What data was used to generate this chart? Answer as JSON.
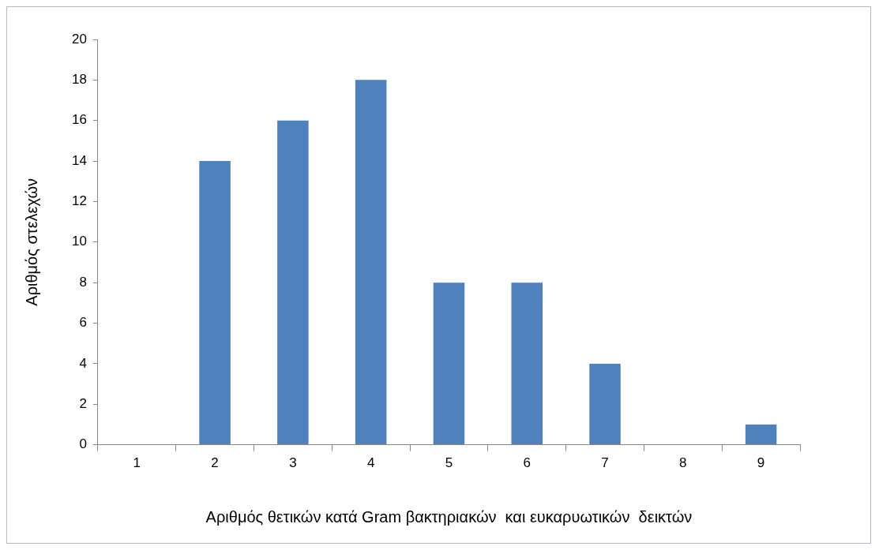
{
  "chart_data": {
    "type": "bar",
    "xlabel": "Αριθμός θετικών κατά Gram βακτηριακών  και ευκαρυωτικών  δεικτών",
    "ylabel": "Αριθμός στελεχών",
    "categories": [
      "1",
      "2",
      "3",
      "4",
      "5",
      "6",
      "7",
      "8",
      "9"
    ],
    "values": [
      0,
      14,
      16,
      18,
      8,
      8,
      4,
      0,
      1
    ],
    "color": "#4f81bd",
    "ylim": [
      0,
      20
    ],
    "yticks": [
      0,
      2,
      4,
      6,
      8,
      10,
      12,
      14,
      16,
      18,
      20
    ],
    "grid": false,
    "legend": false
  }
}
